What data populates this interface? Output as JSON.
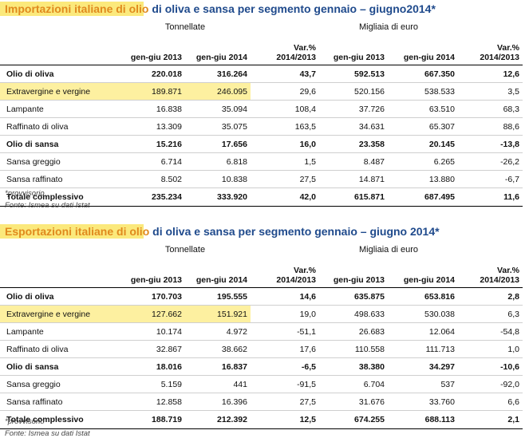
{
  "colors": {
    "title_blue": "#1f4a8c",
    "title_orange": "#e08a1e",
    "highlight": "#fbe97c"
  },
  "import": {
    "title_a": "Importazioni italiane di olio",
    "title_b": " di oliva e sansa per segmento gennaio – giugno2014*",
    "group_qty": "Tonnellate",
    "group_val": "Migliaia di euro",
    "col_2013": "gen-giu 2013",
    "col_2014": "gen-giu 2014",
    "col_var_1": "Var.%",
    "col_var_2": "2014/2013",
    "rows": [
      {
        "label": "Olio di oliva",
        "q13": "220.018",
        "q14": "316.264",
        "qv": "43,7",
        "v13": "592.513",
        "v14": "667.350",
        "vv": "12,6"
      },
      {
        "label": "Extravergine e vergine",
        "q13": "189.871",
        "q14": "246.095",
        "qv": "29,6",
        "v13": "520.156",
        "v14": "538.533",
        "vv": "3,5"
      },
      {
        "label": "Lampante",
        "q13": "16.838",
        "q14": "35.094",
        "qv": "108,4",
        "v13": "37.726",
        "v14": "63.510",
        "vv": "68,3"
      },
      {
        "label": "Raffinato di oliva",
        "q13": "13.309",
        "q14": "35.075",
        "qv": "163,5",
        "v13": "34.631",
        "v14": "65.307",
        "vv": "88,6"
      },
      {
        "label": "Olio di sansa",
        "q13": "15.216",
        "q14": "17.656",
        "qv": "16,0",
        "v13": "23.358",
        "v14": "20.145",
        "vv": "-13,8"
      },
      {
        "label": "Sansa greggio",
        "q13": "6.714",
        "q14": "6.818",
        "qv": "1,5",
        "v13": "8.487",
        "v14": "6.265",
        "vv": "-26,2"
      },
      {
        "label": "Sansa raffinato",
        "q13": "8.502",
        "q14": "10.838",
        "qv": "27,5",
        "v13": "14.871",
        "v14": "13.880",
        "vv": "-6,7"
      },
      {
        "label": "Totale complessivo",
        "q13": "235.234",
        "q14": "333.920",
        "qv": "42,0",
        "v13": "615.871",
        "v14": "687.495",
        "vv": "11,6"
      }
    ],
    "note1": "*provvisorio",
    "note2": "Fonte: Ismea su dati Istat"
  },
  "export": {
    "title_a": "Esportazioni italiane di olio",
    "title_b": " di oliva e sansa per segmento gennaio – giugno 2014*",
    "group_qty": "Tonnellate",
    "group_val": "Migliaia di euro",
    "col_2013": "gen-giu 2013",
    "col_2014": "gen-giu 2014",
    "col_var_1": "Var.%",
    "col_var_2": "2014/2013",
    "rows": [
      {
        "label": "Olio di oliva",
        "q13": "170.703",
        "q14": "195.555",
        "qv": "14,6",
        "v13": "635.875",
        "v14": "653.816",
        "vv": "2,8"
      },
      {
        "label": "Extravergine e vergine",
        "q13": "127.662",
        "q14": "151.921",
        "qv": "19,0",
        "v13": "498.633",
        "v14": "530.038",
        "vv": "6,3"
      },
      {
        "label": "Lampante",
        "q13": "10.174",
        "q14": "4.972",
        "qv": "-51,1",
        "v13": "26.683",
        "v14": "12.064",
        "vv": "-54,8"
      },
      {
        "label": "Raffinato di oliva",
        "q13": "32.867",
        "q14": "38.662",
        "qv": "17,6",
        "v13": "110.558",
        "v14": "111.713",
        "vv": "1,0"
      },
      {
        "label": "Olio di sansa",
        "q13": "18.016",
        "q14": "16.837",
        "qv": "-6,5",
        "v13": "38.380",
        "v14": "34.297",
        "vv": "-10,6"
      },
      {
        "label": "Sansa greggio",
        "q13": "5.159",
        "q14": "441",
        "qv": "-91,5",
        "v13": "6.704",
        "v14": "537",
        "vv": "-92,0"
      },
      {
        "label": "Sansa raffinato",
        "q13": "12.858",
        "q14": "16.396",
        "qv": "27,5",
        "v13": "31.676",
        "v14": "33.760",
        "vv": "6,6"
      },
      {
        "label": "Totale complessivo",
        "q13": "188.719",
        "q14": "212.392",
        "qv": "12,5",
        "v13": "674.255",
        "v14": "688.113",
        "vv": "2,1"
      }
    ],
    "note1": "*provvisorio",
    "note2": "Fonte: Ismea su dati Istat"
  }
}
